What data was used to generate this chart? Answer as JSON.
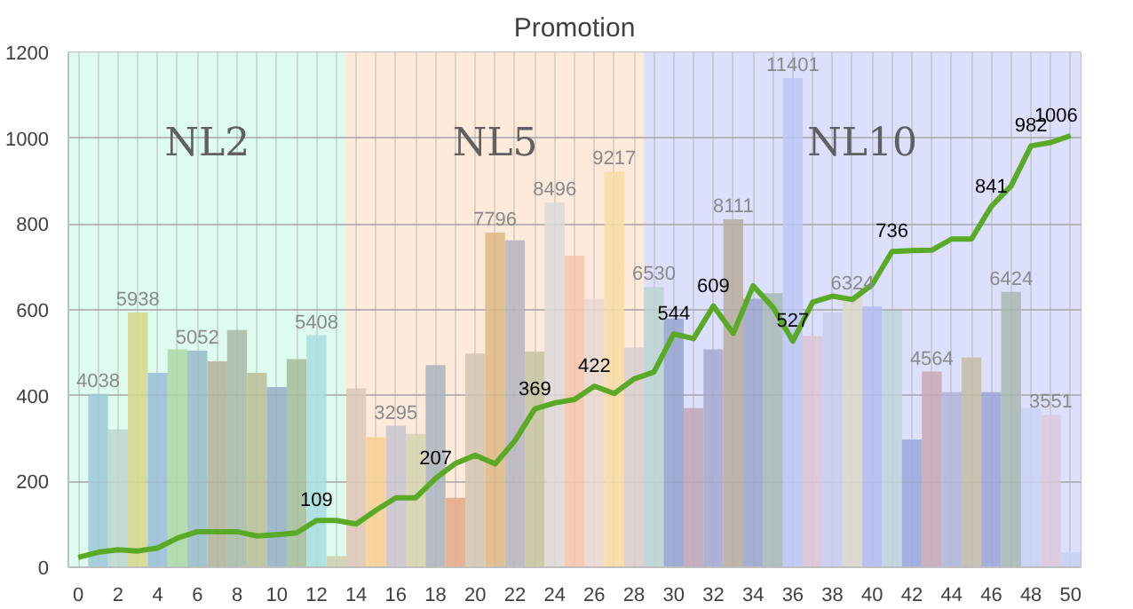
{
  "chart_data": {
    "type": "bar",
    "title": "Promotion",
    "xlim": [
      -0.5,
      50.5
    ],
    "ylim": [
      0,
      1200
    ],
    "xticks": [
      0,
      {
        "value": 1,
        "label": null
      },
      2,
      {
        "value": 3,
        "label": null
      },
      4,
      {
        "value": 5,
        "label": null
      },
      6,
      {
        "value": 7,
        "label": null
      },
      8,
      {
        "value": 9,
        "label": null
      },
      10,
      {
        "value": 11,
        "label": null
      },
      12,
      {
        "value": 13,
        "label": null
      },
      14,
      {
        "value": 15,
        "label": null
      },
      16,
      {
        "value": 17,
        "label": null
      },
      18,
      {
        "value": 19,
        "label": null
      },
      20,
      {
        "value": 21,
        "label": null
      },
      22,
      {
        "value": 23,
        "label": null
      },
      24,
      {
        "value": 25,
        "label": null
      },
      26,
      {
        "value": 27,
        "label": null
      },
      28,
      {
        "value": 29,
        "label": null
      },
      30,
      {
        "value": 31,
        "label": null
      },
      32,
      {
        "value": 33,
        "label": null
      },
      34,
      {
        "value": 35,
        "label": null
      },
      36,
      {
        "value": 37,
        "label": null
      },
      38,
      {
        "value": 39,
        "label": null
      },
      40,
      {
        "value": 41,
        "label": null
      },
      42,
      {
        "value": 43,
        "label": null
      },
      44,
      {
        "value": 45,
        "label": null
      },
      46,
      {
        "value": 47,
        "label": null
      },
      48,
      {
        "value": 49,
        "label": null
      },
      50
    ],
    "yticks": [
      0,
      200,
      400,
      600,
      800,
      1000,
      1200
    ],
    "grid": true,
    "annotations": [
      {
        "text": "4038",
        "x": 1,
        "y": 404
      },
      {
        "text": "5938",
        "x": 3,
        "y": 594
      },
      {
        "text": "5052",
        "x": 6,
        "y": 505
      },
      {
        "text": "5408",
        "x": 12,
        "y": 541
      },
      {
        "text": "3295",
        "x": 16,
        "y": 330
      },
      {
        "text": "7796",
        "x": 21,
        "y": 780
      },
      {
        "text": "8496",
        "x": 24,
        "y": 850
      },
      {
        "text": "9217",
        "x": 27,
        "y": 922
      },
      {
        "text": "6530",
        "x": 29,
        "y": 653
      },
      {
        "text": "8111",
        "x": 33,
        "y": 811
      },
      {
        "text": "11401",
        "x": 36,
        "y": 1140
      },
      {
        "text": "6324",
        "x": 39,
        "y": 632
      },
      {
        "text": "4564",
        "x": 43,
        "y": 456
      },
      {
        "text": "6424",
        "x": 47,
        "y": 642
      },
      {
        "text": "3551",
        "x": 49,
        "y": 355
      }
    ],
    "bands": [
      {
        "axis": "x",
        "from": -0.5,
        "to": 13.5,
        "label": "NL2",
        "color": "#ddfcef"
      },
      {
        "axis": "x",
        "from": 13.5,
        "to": 28.5,
        "label": "NL5",
        "color": "#fdeadb"
      },
      {
        "axis": "x",
        "from": 28.5,
        "to": 50.5,
        "label": "NL10",
        "color": "#dde0fc"
      }
    ],
    "series": [
      {
        "x": [
          1,
          2,
          3,
          4,
          5,
          6,
          7,
          8,
          9,
          10,
          11,
          12,
          13,
          14,
          15,
          16,
          17,
          18,
          19,
          20,
          21,
          22,
          23,
          24,
          25,
          26,
          27,
          28,
          29,
          30,
          31,
          32,
          33,
          34,
          35,
          36,
          37,
          38,
          39,
          40,
          41,
          42,
          43,
          44,
          45,
          46,
          47,
          48,
          49,
          50
        ],
        "values": [
          404,
          321,
          594,
          453,
          508,
          505,
          480,
          553,
          453,
          420,
          485,
          541,
          26,
          417,
          303,
          330,
          311,
          471,
          162,
          498,
          780,
          762,
          503,
          850,
          726,
          626,
          922,
          512,
          653,
          580,
          371,
          508,
          811,
          626,
          639,
          1140,
          539,
          594,
          632,
          608,
          598,
          298,
          456,
          408,
          489,
          408,
          642,
          371,
          355,
          35
        ],
        "colors": [
          "#9dc8d6",
          "#bcd6d0",
          "#d6d68a",
          "#99bcd6",
          "#acd6a4",
          "#99b8c8",
          "#b4b09a",
          "#a8b8a8",
          "#bcbc94",
          "#98acc4",
          "#a4bc98",
          "#a8dce0",
          "#d0ccb0",
          "#dcc8b8",
          "#f4d090",
          "#c8c4d0",
          "#d4d4b0",
          "#a8b4c0",
          "#e4a888",
          "#d4c4b4",
          "#dcb884",
          "#b4b4c0",
          "#c4c4a0",
          "#dcd8d8",
          "#f4c4ac",
          "#e8d8d0",
          "#f8dca4",
          "#d8ccd0",
          "#bcd4d0",
          "#94a4cc",
          "#c0a4b4",
          "#a4a8cc",
          "#b8ac9c",
          "#9ca4cc",
          "#a8b8b4",
          "#bcc8f4",
          "#dcc4d4",
          "#c8ccec",
          "#dcd8c8",
          "#b4bcf0",
          "#c0d4d8",
          "#98a8dc",
          "#c8a8b4",
          "#b0b4d8",
          "#c4bca4",
          "#9ca4d8",
          "#a8b8b0",
          "#c8d0f4",
          "#dcc8dc",
          "#c8d0f0"
        ]
      },
      {
        "type": "line",
        "color": "#5aaa28",
        "x": [
          0,
          1,
          2,
          3,
          4,
          5,
          6,
          7,
          8,
          9,
          10,
          11,
          12,
          13,
          14,
          15,
          16,
          17,
          18,
          19,
          20,
          21,
          22,
          23,
          24,
          25,
          26,
          27,
          28,
          29,
          30,
          31,
          32,
          33,
          34,
          35,
          36,
          37,
          38,
          39,
          40,
          41,
          42,
          43,
          44,
          45,
          46,
          47,
          48,
          49,
          50
        ],
        "values": [
          23,
          35,
          41,
          38,
          45,
          68,
          83,
          83,
          83,
          73,
          76,
          80,
          109,
          109,
          101,
          133,
          162,
          162,
          207,
          242,
          261,
          241,
          295,
          369,
          383,
          391,
          422,
          405,
          439,
          455,
          544,
          533,
          609,
          545,
          656,
          606,
          527,
          618,
          632,
          624,
          659,
          736,
          738,
          739,
          765,
          765,
          841,
          889,
          982,
          990,
          1006
        ],
        "value_labels": [
          null,
          null,
          null,
          null,
          null,
          null,
          null,
          null,
          null,
          null,
          null,
          null,
          "109",
          null,
          null,
          null,
          null,
          null,
          "207",
          null,
          null,
          null,
          null,
          "369",
          null,
          null,
          "422",
          null,
          null,
          null,
          "544",
          null,
          "609",
          null,
          null,
          null,
          "527",
          null,
          null,
          null,
          null,
          "736",
          null,
          null,
          null,
          null,
          "841",
          null,
          "982",
          null,
          "1006"
        ]
      }
    ]
  }
}
